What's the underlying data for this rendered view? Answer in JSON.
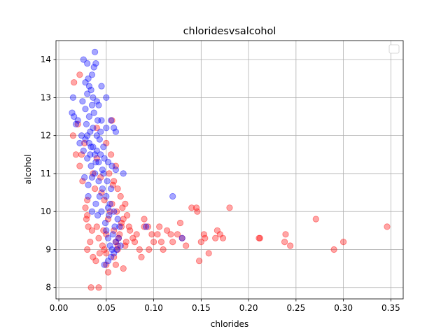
{
  "chart_data": {
    "type": "scatter",
    "title": "chloridesvsalcohol",
    "xlabel": "chlorides",
    "ylabel": "alcohol",
    "xlim": [
      -0.003,
      0.363
    ],
    "ylim": [
      7.7,
      14.5
    ],
    "xticks": [
      "0.00",
      "0.05",
      "0.10",
      "0.15",
      "0.20",
      "0.25",
      "0.30",
      "0.35"
    ],
    "xtick_values": [
      0.0,
      0.05,
      0.1,
      0.15,
      0.2,
      0.25,
      0.3,
      0.35
    ],
    "yticks": [
      "8",
      "9",
      "10",
      "11",
      "12",
      "13",
      "14"
    ],
    "ytick_values": [
      8,
      9,
      10,
      11,
      12,
      13,
      14
    ],
    "grid": true,
    "legend": {
      "position": "top-right",
      "entries": []
    },
    "series": [
      {
        "color": "#ff0000",
        "opacity": 0.35,
        "points": [
          [
            0.016,
            13.4
          ],
          [
            0.022,
            13.6
          ],
          [
            0.02,
            12.3
          ],
          [
            0.015,
            12.0
          ],
          [
            0.018,
            11.5
          ],
          [
            0.022,
            11.2
          ],
          [
            0.025,
            10.8
          ],
          [
            0.03,
            10.3
          ],
          [
            0.03,
            9.9
          ],
          [
            0.035,
            9.5
          ],
          [
            0.03,
            9.0
          ],
          [
            0.036,
            8.8
          ],
          [
            0.034,
            8.0
          ],
          [
            0.042,
            8.0
          ],
          [
            0.05,
            8.6
          ],
          [
            0.052,
            8.4
          ],
          [
            0.06,
            8.6
          ],
          [
            0.068,
            8.5
          ],
          [
            0.045,
            10.5
          ],
          [
            0.055,
            11.5
          ],
          [
            0.06,
            11.2
          ],
          [
            0.058,
            10.8
          ],
          [
            0.062,
            10.6
          ],
          [
            0.065,
            10.4
          ],
          [
            0.07,
            10.2
          ],
          [
            0.072,
            9.9
          ],
          [
            0.066,
            9.6
          ],
          [
            0.063,
            9.3
          ],
          [
            0.07,
            9.1
          ],
          [
            0.075,
            9.5
          ],
          [
            0.078,
            9.3
          ],
          [
            0.08,
            9.2
          ],
          [
            0.082,
            9.4
          ],
          [
            0.085,
            9.0
          ],
          [
            0.087,
            8.8
          ],
          [
            0.09,
            9.6
          ],
          [
            0.09,
            9.8
          ],
          [
            0.094,
            9.6
          ],
          [
            0.095,
            9.0
          ],
          [
            0.098,
            9.4
          ],
          [
            0.1,
            9.2
          ],
          [
            0.104,
            9.4
          ],
          [
            0.106,
            9.6
          ],
          [
            0.108,
            9.2
          ],
          [
            0.11,
            9.0
          ],
          [
            0.114,
            9.5
          ],
          [
            0.118,
            9.4
          ],
          [
            0.12,
            9.2
          ],
          [
            0.125,
            9.4
          ],
          [
            0.128,
            9.7
          ],
          [
            0.13,
            9.3
          ],
          [
            0.134,
            9.1
          ],
          [
            0.14,
            10.1
          ],
          [
            0.145,
            10.1
          ],
          [
            0.146,
            10.0
          ],
          [
            0.15,
            9.2
          ],
          [
            0.153,
            9.4
          ],
          [
            0.154,
            9.3
          ],
          [
            0.158,
            8.9
          ],
          [
            0.165,
            9.3
          ],
          [
            0.167,
            9.5
          ],
          [
            0.17,
            9.4
          ],
          [
            0.173,
            9.3
          ],
          [
            0.18,
            10.1
          ],
          [
            0.148,
            8.7
          ],
          [
            0.211,
            9.3
          ],
          [
            0.212,
            9.3
          ],
          [
            0.238,
            9.2
          ],
          [
            0.239,
            9.4
          ],
          [
            0.244,
            9.1
          ],
          [
            0.271,
            9.8
          ],
          [
            0.29,
            9.0
          ],
          [
            0.3,
            9.2
          ],
          [
            0.346,
            9.6
          ],
          [
            0.04,
            9.6
          ],
          [
            0.042,
            9.3
          ],
          [
            0.046,
            9.1
          ],
          [
            0.048,
            9.0
          ],
          [
            0.05,
            9.4
          ],
          [
            0.052,
            9.8
          ],
          [
            0.054,
            10.0
          ],
          [
            0.056,
            10.2
          ],
          [
            0.058,
            9.5
          ],
          [
            0.06,
            9.2
          ],
          [
            0.062,
            9.0
          ],
          [
            0.064,
            9.4
          ],
          [
            0.066,
            9.7
          ],
          [
            0.038,
            10.6
          ],
          [
            0.036,
            11.0
          ],
          [
            0.04,
            11.4
          ],
          [
            0.044,
            10.9
          ],
          [
            0.048,
            10.3
          ],
          [
            0.033,
            9.2
          ],
          [
            0.031,
            9.6
          ],
          [
            0.029,
            9.8
          ],
          [
            0.028,
            10.1
          ],
          [
            0.056,
            12.4
          ],
          [
            0.04,
            12.2
          ],
          [
            0.027,
            11.8
          ],
          [
            0.024,
            11.5
          ],
          [
            0.05,
            8.9
          ],
          [
            0.058,
            8.8
          ],
          [
            0.062,
            9.1
          ],
          [
            0.071,
            9.2
          ],
          [
            0.074,
            9.6
          ],
          [
            0.068,
            9.8
          ],
          [
            0.05,
            11.8
          ],
          [
            0.053,
            11.0
          ],
          [
            0.057,
            10.7
          ],
          [
            0.047,
            9.5
          ],
          [
            0.043,
            8.9
          ],
          [
            0.039,
            8.7
          ],
          [
            0.061,
            10.0
          ],
          [
            0.067,
            10.1
          ]
        ]
      },
      {
        "color": "#0000ff",
        "opacity": 0.35,
        "points": [
          [
            0.026,
            14.0
          ],
          [
            0.03,
            13.9
          ],
          [
            0.038,
            14.2
          ],
          [
            0.039,
            13.9
          ],
          [
            0.037,
            13.8
          ],
          [
            0.035,
            13.6
          ],
          [
            0.031,
            13.5
          ],
          [
            0.028,
            13.4
          ],
          [
            0.032,
            13.3
          ],
          [
            0.034,
            13.2
          ],
          [
            0.03,
            13.1
          ],
          [
            0.015,
            13.0
          ],
          [
            0.036,
            13.0
          ],
          [
            0.04,
            12.9
          ],
          [
            0.042,
            12.8
          ],
          [
            0.014,
            12.6
          ],
          [
            0.016,
            12.5
          ],
          [
            0.02,
            12.4
          ],
          [
            0.045,
            12.4
          ],
          [
            0.05,
            12.2
          ],
          [
            0.055,
            12.4
          ],
          [
            0.058,
            12.2
          ],
          [
            0.06,
            12.1
          ],
          [
            0.018,
            12.3
          ],
          [
            0.024,
            12.0
          ],
          [
            0.028,
            11.9
          ],
          [
            0.032,
            11.8
          ],
          [
            0.036,
            11.7
          ],
          [
            0.04,
            11.6
          ],
          [
            0.044,
            11.5
          ],
          [
            0.048,
            11.4
          ],
          [
            0.052,
            11.3
          ],
          [
            0.056,
            11.2
          ],
          [
            0.06,
            11.1
          ],
          [
            0.068,
            11.0
          ],
          [
            0.022,
            11.8
          ],
          [
            0.026,
            11.6
          ],
          [
            0.03,
            11.4
          ],
          [
            0.034,
            11.2
          ],
          [
            0.038,
            11.0
          ],
          [
            0.042,
            10.8
          ],
          [
            0.046,
            10.6
          ],
          [
            0.05,
            10.4
          ],
          [
            0.054,
            10.2
          ],
          [
            0.058,
            10.0
          ],
          [
            0.062,
            9.8
          ],
          [
            0.064,
            9.6
          ],
          [
            0.05,
            9.5
          ],
          [
            0.052,
            9.3
          ],
          [
            0.054,
            9.1
          ],
          [
            0.056,
            9.0
          ],
          [
            0.058,
            8.9
          ],
          [
            0.055,
            8.8
          ],
          [
            0.052,
            8.7
          ],
          [
            0.048,
            8.6
          ],
          [
            0.06,
            9.2
          ],
          [
            0.065,
            9.1
          ],
          [
            0.12,
            10.4
          ],
          [
            0.13,
            9.3
          ],
          [
            0.092,
            9.6
          ],
          [
            0.04,
            12.0
          ],
          [
            0.036,
            12.2
          ],
          [
            0.032,
            12.5
          ],
          [
            0.028,
            12.7
          ],
          [
            0.025,
            12.9
          ],
          [
            0.043,
            11.9
          ],
          [
            0.047,
            11.7
          ],
          [
            0.039,
            11.3
          ],
          [
            0.035,
            10.9
          ],
          [
            0.031,
            10.7
          ],
          [
            0.027,
            10.9
          ],
          [
            0.045,
            10.0
          ],
          [
            0.041,
            9.9
          ],
          [
            0.049,
            9.7
          ],
          [
            0.053,
            9.9
          ],
          [
            0.057,
            9.4
          ],
          [
            0.061,
            9.0
          ],
          [
            0.033,
            12.1
          ],
          [
            0.029,
            12.3
          ],
          [
            0.037,
            12.6
          ],
          [
            0.041,
            12.4
          ],
          [
            0.044,
            12.1
          ],
          [
            0.046,
            11.1
          ],
          [
            0.042,
            11.3
          ],
          [
            0.038,
            11.5
          ],
          [
            0.034,
            11.7
          ],
          [
            0.03,
            12.0
          ],
          [
            0.055,
            10.6
          ],
          [
            0.051,
            10.8
          ],
          [
            0.047,
            11.0
          ],
          [
            0.043,
            10.4
          ],
          [
            0.039,
            10.2
          ],
          [
            0.035,
            10.0
          ],
          [
            0.031,
            10.4
          ],
          [
            0.059,
            9.6
          ],
          [
            0.063,
            9.3
          ],
          [
            0.05,
            13.0
          ],
          [
            0.045,
            13.3
          ],
          [
            0.035,
            12.8
          ],
          [
            0.033,
            11.5
          ],
          [
            0.052,
            10.1
          ]
        ]
      }
    ]
  }
}
